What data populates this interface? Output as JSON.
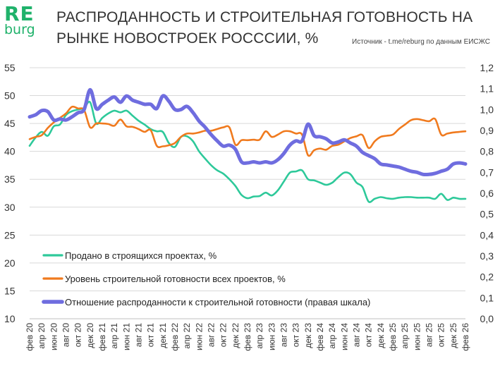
{
  "logo": {
    "top": "RE",
    "bottom": "burg"
  },
  "chart_data": {
    "type": "line",
    "title": "РАСПРОДАННОСТЬ И СТРОИТЕЛЬНАЯ ГОТОВНОСТЬ НА РЫНКЕ НОВОСТРОЕК РОСССИИ, %",
    "source": "Источник - t.me/reburg по данным ЕИСЖС",
    "ylim_left": [
      10,
      55
    ],
    "ylim_right": [
      0.0,
      1.2
    ],
    "yticks_left": [
      "10",
      "15",
      "20",
      "25",
      "30",
      "35",
      "40",
      "45",
      "50",
      "55"
    ],
    "yticks_right": [
      "0,0",
      "0,1",
      "0,2",
      "0,3",
      "0,4",
      "0,5",
      "0,6",
      "0,7",
      "0,8",
      "0,9",
      "1,0",
      "1,1",
      "1,2"
    ],
    "grid": true,
    "legend_position": "bottom-left",
    "categories": [
      "фев 20",
      "мар 20",
      "апр 20",
      "май 20",
      "июн 20",
      "июл 20",
      "авг 20",
      "сен 20",
      "окт 20",
      "ноя 20",
      "дек 20",
      "янв 21",
      "фев 21",
      "мар 21",
      "апр 21",
      "май 21",
      "июн 21",
      "июл 21",
      "авг 21",
      "сен 21",
      "окт 21",
      "ноя 21",
      "дек 21",
      "янв 22",
      "фев 22",
      "мар 22",
      "апр 22",
      "май 22",
      "июн 22",
      "июл 22",
      "авг 22",
      "сен 22",
      "окт 22",
      "ноя 22",
      "дек 22",
      "янв 23",
      "фев 23",
      "мар 23",
      "апр 23",
      "май 23",
      "июн 23",
      "июл 23",
      "авг 23",
      "сен 23",
      "окт 23",
      "ноя 23",
      "дек 23",
      "янв 24",
      "фев 24",
      "мар 24",
      "апр 24",
      "май 24",
      "июн 24",
      "июл 24",
      "авг 24",
      "сен 24",
      "окт 24",
      "ноя 24",
      "дек 24",
      "янв 25",
      "фев 25",
      "мар 25",
      "апр 25",
      "май 25",
      "июн 25",
      "июл 25",
      "авг 25",
      "сен 25",
      "окт 25",
      "ноя 25",
      "дек 25",
      "янв 26",
      "фев 26"
    ],
    "x_tick_labels": [
      "фев 20",
      "апр 20",
      "июн 20",
      "авг 20",
      "окт 20",
      "дек 20",
      "фев 21",
      "апр 21",
      "июн 21",
      "авг 21",
      "окт 21",
      "дек 21",
      "фев 22",
      "апр 22",
      "июн 22",
      "авг 22",
      "окт 22",
      "дек 22",
      "фев 23",
      "апр 23",
      "июн 23",
      "авг 23",
      "окт 23",
      "дек 23",
      "фев 24",
      "апр 24",
      "июн 24",
      "авг 24",
      "окт 24",
      "дек 24",
      "фев 25",
      "апр 25",
      "июн 25",
      "авг 25",
      "окт 25",
      "дек 25",
      "фев 26"
    ],
    "series": [
      {
        "name": "Продано в строящихся проектах, %",
        "color": "#2ec99a",
        "axis": "left",
        "values": [
          41.0,
          42.5,
          43.5,
          42.8,
          44.5,
          44.8,
          46.5,
          47.2,
          47.5,
          47.8,
          48.8,
          45.0,
          46.0,
          46.8,
          47.3,
          47.0,
          47.3,
          46.4,
          45.5,
          44.8,
          44.0,
          43.6,
          43.5,
          41.5,
          40.8,
          42.6,
          42.7,
          41.8,
          40.0,
          38.7,
          37.5,
          36.6,
          36.0,
          35.0,
          33.8,
          32.2,
          31.6,
          31.9,
          32.0,
          32.6,
          32.1,
          33.0,
          34.6,
          36.2,
          36.4,
          36.6,
          35.0,
          34.8,
          34.4,
          34.0,
          34.4,
          35.4,
          36.2,
          35.9,
          34.4,
          33.6,
          31.0,
          31.5,
          31.8,
          31.6,
          31.5,
          31.7,
          31.8,
          31.8,
          31.7,
          31.7,
          31.7,
          31.5,
          32.4,
          31.3,
          31.7,
          31.5,
          31.5
        ]
      },
      {
        "name": "Уровень строительной готовности всех проектов, %",
        "color": "#f07a1e",
        "axis": "left",
        "values": [
          42.2,
          42.6,
          42.9,
          44.2,
          45.2,
          46.0,
          46.8,
          48.0,
          47.7,
          47.4,
          44.3,
          45.0,
          45.0,
          44.9,
          44.6,
          45.7,
          44.5,
          44.4,
          44.0,
          43.5,
          43.8,
          41.0,
          40.9,
          41.1,
          41.5,
          42.6,
          43.2,
          43.2,
          43.4,
          43.7,
          43.7,
          44.0,
          44.3,
          44.3,
          41.2,
          42.0,
          42.0,
          42.1,
          42.1,
          43.6,
          42.6,
          43.0,
          43.6,
          43.6,
          43.2,
          43.0,
          39.3,
          40.2,
          40.5,
          40.3,
          41.0,
          41.2,
          41.8,
          42.4,
          42.7,
          42.9,
          40.6,
          41.8,
          42.6,
          42.8,
          43.0,
          44.0,
          44.8,
          45.6,
          45.8,
          45.6,
          45.4,
          45.8,
          43.0,
          43.2,
          43.4,
          43.5,
          43.6
        ]
      },
      {
        "name": "Отношение распроданности к строительной готовности (правая шкала)",
        "color": "#6f6ddf",
        "axis": "right",
        "values": [
          0.965,
          0.975,
          0.995,
          0.99,
          0.95,
          0.955,
          0.95,
          0.965,
          0.985,
          1.0,
          1.095,
          1.005,
          1.025,
          1.045,
          1.06,
          1.035,
          1.065,
          1.045,
          1.035,
          1.025,
          1.025,
          1.005,
          1.065,
          1.04,
          1.0,
          1.0,
          1.015,
          0.985,
          0.945,
          0.915,
          0.88,
          0.85,
          0.825,
          0.83,
          0.81,
          0.75,
          0.745,
          0.75,
          0.745,
          0.75,
          0.745,
          0.76,
          0.79,
          0.83,
          0.85,
          0.85,
          0.93,
          0.875,
          0.87,
          0.86,
          0.84,
          0.845,
          0.855,
          0.84,
          0.825,
          0.795,
          0.78,
          0.765,
          0.74,
          0.735,
          0.73,
          0.725,
          0.715,
          0.705,
          0.7,
          0.69,
          0.69,
          0.695,
          0.705,
          0.715,
          0.74,
          0.745,
          0.74
        ]
      }
    ]
  }
}
